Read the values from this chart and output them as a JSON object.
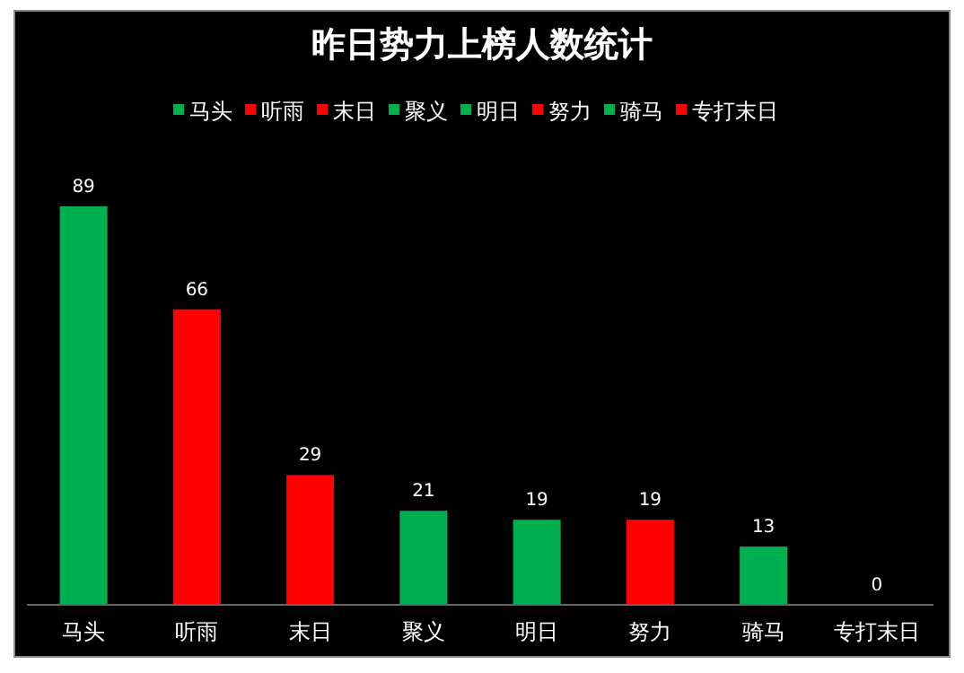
{
  "chart_data": {
    "type": "bar",
    "title": "昨日势力上榜人数统计",
    "categories": [
      "马头",
      "听雨",
      "末日",
      "聚义",
      "明日",
      "努力",
      "骑马",
      "专打末日"
    ],
    "stacked": true,
    "series": [
      {
        "name": "马头",
        "color": "#00b050",
        "values": [
          89,
          null,
          null,
          null,
          null,
          null,
          null,
          null
        ]
      },
      {
        "name": "听雨",
        "color": "#ff0000",
        "values": [
          null,
          66,
          null,
          null,
          null,
          null,
          null,
          null
        ]
      },
      {
        "name": "末日",
        "color": "#ff0000",
        "values": [
          null,
          null,
          29,
          null,
          null,
          null,
          null,
          null
        ]
      },
      {
        "name": "聚义",
        "color": "#00b050",
        "values": [
          null,
          null,
          null,
          21,
          null,
          null,
          null,
          null
        ]
      },
      {
        "name": "明日",
        "color": "#00b050",
        "values": [
          null,
          null,
          null,
          null,
          19,
          null,
          null,
          null
        ]
      },
      {
        "name": "努力",
        "color": "#ff0000",
        "values": [
          null,
          null,
          null,
          null,
          null,
          19,
          null,
          null
        ]
      },
      {
        "name": "骑马",
        "color": "#00b050",
        "values": [
          null,
          null,
          null,
          null,
          null,
          null,
          13,
          null
        ]
      },
      {
        "name": "专打末日",
        "color": "#ff0000",
        "values": [
          null,
          null,
          null,
          null,
          null,
          null,
          null,
          0
        ]
      }
    ],
    "data_labels": true,
    "legend": "top"
  }
}
